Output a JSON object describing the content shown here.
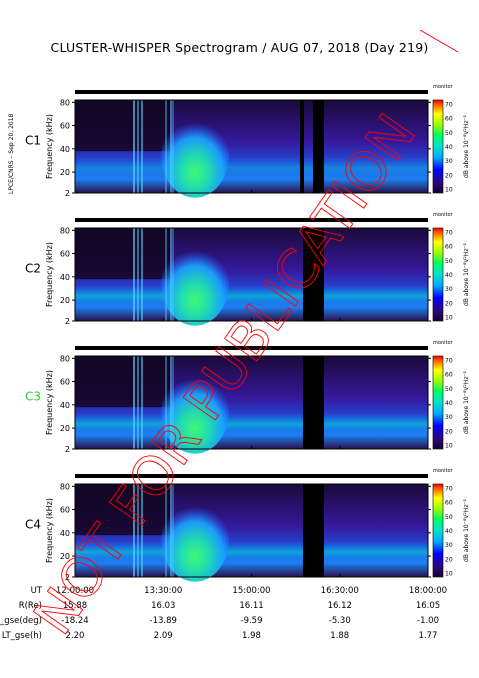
{
  "title": "CLUSTER-WHISPER Spectrogram / AUG 07, 2018 (Day 219)",
  "side_credit": "LPCE/CNRS – Sep 20, 2018",
  "watermark": "NOT FOR PUBLICATION",
  "colors": {
    "accent_c3": "#33cc33",
    "data_gap": "#000000",
    "watermark": "#ff0000"
  },
  "panels": [
    {
      "id": "C1",
      "label": "C1",
      "color": "#000000"
    },
    {
      "id": "C2",
      "label": "C2",
      "color": "#000000"
    },
    {
      "id": "C3",
      "label": "C3",
      "color": "#33cc33"
    },
    {
      "id": "C4",
      "label": "C4",
      "color": "#000000"
    }
  ],
  "ylabel": "Frequency (kHz)",
  "colorbar": {
    "label": "dB above 10⁻⁸V²Hz⁻¹",
    "title": "monitor",
    "ticks": [
      "70",
      "60",
      "50",
      "40",
      "30",
      "20",
      "10"
    ]
  },
  "chart_data": {
    "type": "heatmap",
    "y_ticks": [
      2,
      20,
      40,
      60,
      80
    ],
    "ylim": [
      2,
      82
    ],
    "x_ticks": [
      "12:00:00",
      "13:30:00",
      "15:00:00",
      "16:30:00",
      "18:00:00"
    ],
    "ephemeris": [
      {
        "label": "UT",
        "values": [
          "12:00:00",
          "13:30:00",
          "15:00:00",
          "16:30:00",
          "18:00:00"
        ]
      },
      {
        "label": "R(Re)",
        "values": [
          "15.88",
          "16.03",
          "16.11",
          "16.12",
          "16.05"
        ]
      },
      {
        "label": "Lat_gse(deg)",
        "values": [
          "-18.24",
          "-13.89",
          "-9.59",
          "-5.30",
          "-1.00"
        ]
      },
      {
        "label": "LT_gse(h)",
        "values": [
          "2.20",
          "2.09",
          "1.98",
          "1.88",
          "1.77"
        ]
      }
    ]
  }
}
